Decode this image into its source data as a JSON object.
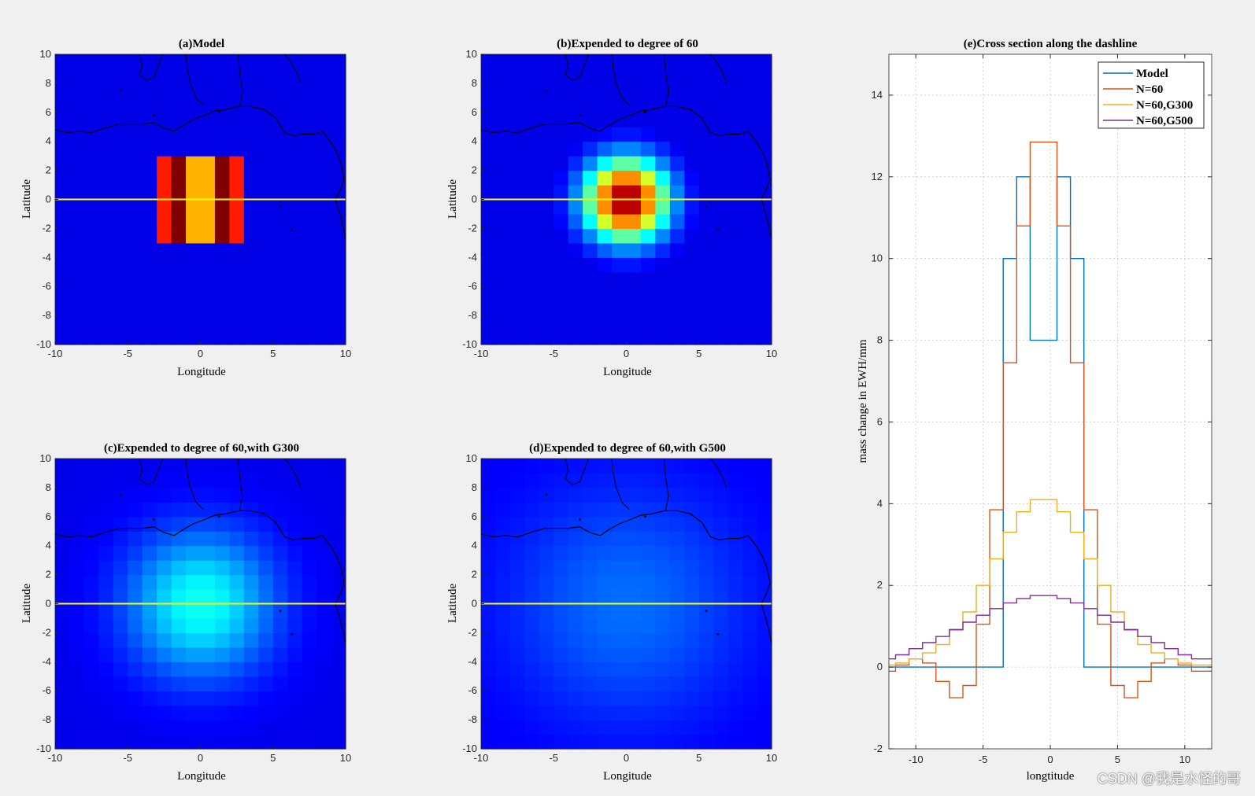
{
  "watermark": "CSDN @我是水怪的哥",
  "colors": {
    "background": "#f0f0f0",
    "dashline": "#ffff00",
    "coast": "#000000"
  },
  "chart_data": [
    {
      "type": "heatmap",
      "id": "a",
      "title": "(a)Model",
      "xlabel": "Longitude",
      "ylabel": "Latitude",
      "xlim": [
        -10,
        10
      ],
      "ylim": [
        -10,
        10
      ],
      "xticks": [
        -10,
        -5,
        0,
        5,
        10
      ],
      "yticks": [
        -10,
        -8,
        -6,
        -4,
        -2,
        0,
        2,
        4,
        6,
        8,
        10
      ],
      "cell_size_deg": 1,
      "field": "model",
      "dashline_lat": 0
    },
    {
      "type": "heatmap",
      "id": "b",
      "title": "(b)Expended to degree of 60",
      "xlabel": "Longitude",
      "ylabel": "Latitude",
      "xlim": [
        -10,
        10
      ],
      "ylim": [
        -10,
        10
      ],
      "xticks": [
        -10,
        -5,
        0,
        5,
        10
      ],
      "yticks": [
        -10,
        -8,
        -6,
        -4,
        -2,
        0,
        2,
        4,
        6,
        8,
        10
      ],
      "cell_size_deg": 1,
      "field": "n60",
      "dashline_lat": 0
    },
    {
      "type": "heatmap",
      "id": "c",
      "title": "(c)Expended to degree of 60,with G300",
      "xlabel": "Longitude",
      "ylabel": "Latitude",
      "xlim": [
        -10,
        10
      ],
      "ylim": [
        -10,
        10
      ],
      "xticks": [
        -10,
        -5,
        0,
        5,
        10
      ],
      "yticks": [
        -10,
        -8,
        -6,
        -4,
        -2,
        0,
        2,
        4,
        6,
        8,
        10
      ],
      "cell_size_deg": 1,
      "field": "g300",
      "dashline_lat": 0
    },
    {
      "type": "heatmap",
      "id": "d",
      "title": "(d)Expended to degree of 60,with G500",
      "xlabel": "Longitude",
      "ylabel": "Latitude",
      "xlim": [
        -10,
        10
      ],
      "ylim": [
        -10,
        10
      ],
      "xticks": [
        -10,
        -5,
        0,
        5,
        10
      ],
      "yticks": [
        -10,
        -8,
        -6,
        -4,
        -2,
        0,
        2,
        4,
        6,
        8,
        10
      ],
      "cell_size_deg": 1,
      "field": "g500",
      "dashline_lat": 0
    },
    {
      "type": "line",
      "id": "e",
      "title": "(e)Cross section along the dashline",
      "xlabel": "longtitude",
      "ylabel": "mass change in EWH/mm",
      "xlim": [
        -12,
        12
      ],
      "ylim": [
        -2,
        15
      ],
      "xticks": [
        -10,
        -5,
        0,
        5,
        10
      ],
      "yticks": [
        -2,
        0,
        2,
        4,
        6,
        8,
        10,
        12,
        14
      ],
      "grid": true,
      "legend_position": "top-right",
      "x": [
        -12,
        -11,
        -10,
        -9,
        -8,
        -7,
        -6,
        -5,
        -4,
        -3,
        -2,
        -1,
        0,
        1,
        2,
        3,
        4,
        5,
        6,
        7,
        8,
        9,
        10,
        11,
        12
      ],
      "series": [
        {
          "name": "Model",
          "color": "#0072bd",
          "values": [
            0,
            0,
            0,
            0,
            0,
            0,
            0,
            0,
            0,
            10,
            12,
            8,
            8,
            12,
            10,
            0,
            0,
            0,
            0,
            0,
            0,
            0,
            0,
            0,
            0
          ]
        },
        {
          "name": "N=60",
          "color": "#d95319",
          "values": [
            -0.1,
            0.05,
            0.2,
            0.1,
            -0.35,
            -0.75,
            -0.45,
            1.05,
            3.85,
            7.45,
            10.8,
            12.85,
            12.85,
            10.8,
            7.45,
            3.85,
            1.05,
            -0.45,
            -0.75,
            -0.35,
            0.1,
            0.2,
            0.05,
            -0.1,
            -0.1
          ]
        },
        {
          "name": "N=60,G300",
          "color": "#edb120",
          "values": [
            0.05,
            0.1,
            0.2,
            0.35,
            0.55,
            0.9,
            1.35,
            2.0,
            2.65,
            3.3,
            3.8,
            4.1,
            4.1,
            3.8,
            3.3,
            2.65,
            2.0,
            1.35,
            0.9,
            0.55,
            0.35,
            0.2,
            0.1,
            0.05,
            0.05
          ]
        },
        {
          "name": "N=60,G500",
          "color": "#7e2f8e",
          "values": [
            0.2,
            0.3,
            0.45,
            0.6,
            0.75,
            0.92,
            1.1,
            1.27,
            1.43,
            1.57,
            1.68,
            1.75,
            1.75,
            1.68,
            1.57,
            1.43,
            1.27,
            1.1,
            0.92,
            0.75,
            0.6,
            0.45,
            0.3,
            0.2,
            0.2
          ]
        }
      ]
    }
  ]
}
